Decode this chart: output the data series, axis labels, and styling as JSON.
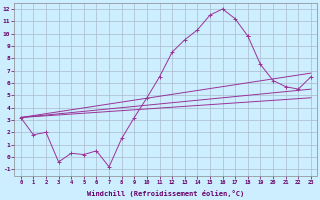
{
  "xlabel": "Windchill (Refroidissement éolien,°C)",
  "bg_color": "#cceeff",
  "grid_color": "#aabbcc",
  "line_color": "#993399",
  "xlim": [
    -0.5,
    23.5
  ],
  "ylim": [
    -1.5,
    12.5
  ],
  "xticks": [
    0,
    1,
    2,
    3,
    4,
    5,
    6,
    7,
    8,
    9,
    10,
    11,
    12,
    13,
    14,
    15,
    16,
    17,
    18,
    19,
    20,
    21,
    22,
    23
  ],
  "yticks": [
    -1,
    0,
    1,
    2,
    3,
    4,
    5,
    6,
    7,
    8,
    9,
    10,
    11,
    12
  ],
  "curve_x": [
    0,
    1,
    2,
    3,
    4,
    5,
    6,
    7,
    8,
    9,
    10,
    11,
    12,
    13,
    14,
    15,
    16,
    17,
    18
  ],
  "curve_y": [
    3.2,
    1.8,
    2.0,
    -0.4,
    0.3,
    0.2,
    0.5,
    -0.8,
    1.5,
    3.2,
    4.8,
    6.5,
    8.5,
    9.5,
    10.3,
    11.5,
    12.0,
    11.2,
    9.8
  ],
  "right_x": [
    18,
    19,
    20,
    21,
    22,
    23
  ],
  "right_y": [
    9.8,
    7.5,
    6.2,
    5.7,
    5.5,
    6.5
  ],
  "line1_x": [
    0,
    23
  ],
  "line1_y": [
    3.2,
    6.8
  ],
  "line2_x": [
    0,
    23
  ],
  "line2_y": [
    3.2,
    5.5
  ],
  "line3_x": [
    0,
    23
  ],
  "line3_y": [
    3.2,
    4.8
  ]
}
